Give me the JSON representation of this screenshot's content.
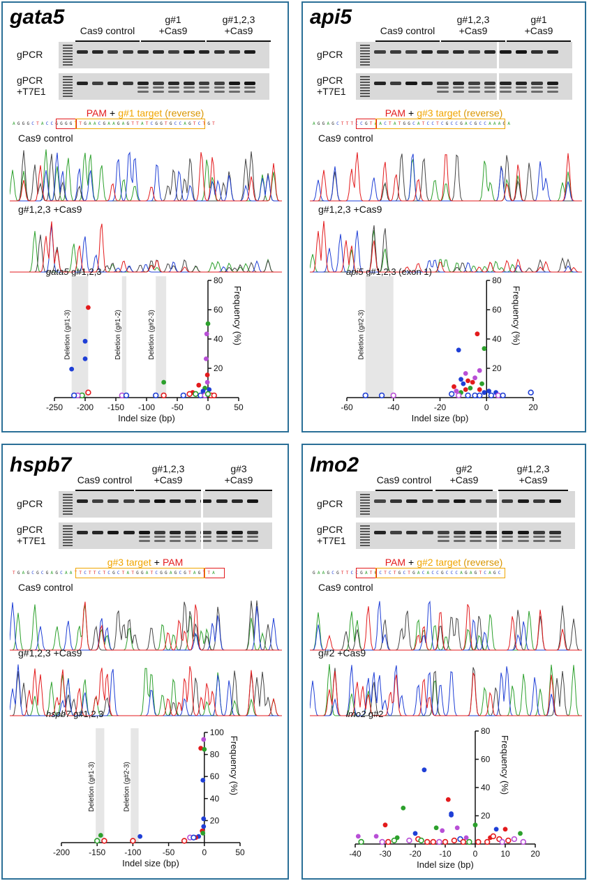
{
  "colors": {
    "border": "#2a6f97",
    "pam": "#e31a1c",
    "target": "#f0a500",
    "red": "#e31a1c",
    "blue": "#1f3fd6",
    "green": "#2ca02c",
    "magenta": "#b84fd6",
    "shade": "#e6e6e6"
  },
  "common": {
    "gpcr": "gPCR",
    "gpcr_t7": "gPCR",
    "t7e1": "+T7E1",
    "cas9_control_group": "Cas9 control",
    "trace_control": "Cas9 control",
    "plus": "+",
    "pam": "PAM",
    "reverse": "(reverse)",
    "x_label": "Indel size (bp)",
    "y_label": "Frequency (%)"
  },
  "panels": [
    {
      "gene": "gata5",
      "groups": [
        {
          "l1": "",
          "l2": "Cas9 control"
        },
        {
          "l1": "g#1",
          "l2": "+Cas9"
        },
        {
          "l1": "g#1,2,3",
          "l2": "+Cas9"
        }
      ],
      "target_label": "g#1 target",
      "sequence": "AGGGCTACCGGGGTTGAACGAAGAGTTATCGGTGCCAGTCTGT",
      "trace2_label": "g#1,2,3 +Cas9",
      "plot_gene": "gata5",
      "plot_suffix": " g#1,2,3",
      "shades": [
        {
          "x1": -222,
          "x2": -195,
          "label": "Deletion (g#1-3)"
        },
        {
          "x1": -140,
          "x2": -133,
          "label": "Deletion (g#1-2)"
        },
        {
          "x1": -85,
          "x2": -68,
          "label": "Deletion (g#2-3)"
        }
      ]
    },
    {
      "gene": "api5",
      "groups": [
        {
          "l1": "",
          "l2": "Cas9 control"
        },
        {
          "l1": "g#1,2,3",
          "l2": "+Cas9"
        },
        {
          "l1": "g#1",
          "l2": "+Cas9"
        }
      ],
      "target_label": "g#3 target",
      "sequence": "AGGAGCTTTCCGTAACTATGGCATCCTCGCCGACGCCAAAGA",
      "trace2_label": "g#1,2,3 +Cas9",
      "plot_gene": "api5",
      "plot_suffix": " g#1,2,3 (exon 1)",
      "shades": [
        {
          "x1": -52,
          "x2": -40,
          "label": "Deletion (g#2-3)"
        }
      ]
    },
    {
      "gene": "hspb7",
      "groups": [
        {
          "l1": "",
          "l2": "Cas9 control"
        },
        {
          "l1": "g#1,2,3",
          "l2": "+Cas9"
        },
        {
          "l1": "g#3",
          "l2": "+Cas9"
        }
      ],
      "target_label": "g#3 target",
      "sequence": "TGAGCGCGAGCAATTCTTCTCGCTATGGATCGGAGCGTAGTTA",
      "trace2_label": "g#1,2,3 +Cas9",
      "plot_gene": "hspb7",
      "plot_suffix": " g#1,2,3",
      "shades": [
        {
          "x1": -152,
          "x2": -140,
          "label": "Deletion (g#1-3)"
        },
        {
          "x1": -103,
          "x2": -92,
          "label": "Deletion (g#2-3)"
        }
      ]
    },
    {
      "gene": "lmo2",
      "groups": [
        {
          "l1": "",
          "l2": "Cas9 control"
        },
        {
          "l1": "g#2",
          "l2": "+Cas9"
        },
        {
          "l1": "g#1,2,3",
          "l2": "+Cas9"
        }
      ],
      "target_label": "g#2 target",
      "sequence": "GAAGCGTTCCGATGCTCTGCTGACACCGCCCAGAGTCAGC",
      "trace2_label": "g#2 +Cas9",
      "plot_gene": "lmo2",
      "plot_suffix": " g#2",
      "shades": []
    }
  ],
  "chart_data": [
    {
      "type": "scatter",
      "title": "gata5 g#1,2,3",
      "xlabel": "Indel size (bp)",
      "ylabel": "Frequency (%)",
      "xlim": [
        -250,
        50
      ],
      "ylim": [
        0,
        80
      ],
      "xticks": [
        -250,
        -200,
        -150,
        -100,
        -50,
        0,
        50
      ],
      "yticks": [
        20,
        40,
        60,
        80
      ],
      "points": [
        {
          "x": -195,
          "y": 61,
          "c": "red",
          "f": 1
        },
        {
          "x": -200,
          "y": 38,
          "c": "blue",
          "f": 1
        },
        {
          "x": -200,
          "y": 26,
          "c": "blue",
          "f": 1
        },
        {
          "x": -222,
          "y": 19,
          "c": "blue",
          "f": 1
        },
        {
          "x": -195,
          "y": 3,
          "c": "red",
          "f": 0
        },
        {
          "x": -205,
          "y": 1,
          "c": "green",
          "f": 0
        },
        {
          "x": -212,
          "y": 1,
          "c": "magenta",
          "f": 0
        },
        {
          "x": -218,
          "y": 1,
          "c": "blue",
          "f": 0
        },
        {
          "x": -140,
          "y": 1,
          "c": "magenta",
          "f": 0
        },
        {
          "x": -133,
          "y": 1,
          "c": "blue",
          "f": 0
        },
        {
          "x": -72,
          "y": 10,
          "c": "green",
          "f": 1
        },
        {
          "x": -85,
          "y": 1,
          "c": "blue",
          "f": 0
        },
        {
          "x": -72,
          "y": 1,
          "c": "red",
          "f": 0
        },
        {
          "x": 0,
          "y": 50,
          "c": "green",
          "f": 1
        },
        {
          "x": -2,
          "y": 43,
          "c": "magenta",
          "f": 1
        },
        {
          "x": -3,
          "y": 26,
          "c": "magenta",
          "f": 1
        },
        {
          "x": -1,
          "y": 15,
          "c": "red",
          "f": 1
        },
        {
          "x": -1,
          "y": 10,
          "c": "magenta",
          "f": 1
        },
        {
          "x": -15,
          "y": 8,
          "c": "red",
          "f": 1
        },
        {
          "x": -5,
          "y": 6,
          "c": "green",
          "f": 1
        },
        {
          "x": 2,
          "y": 5,
          "c": "blue",
          "f": 1
        },
        {
          "x": -8,
          "y": 4,
          "c": "blue",
          "f": 1
        },
        {
          "x": -25,
          "y": 3,
          "c": "red",
          "f": 1
        },
        {
          "x": -30,
          "y": 2,
          "c": "red",
          "f": 0
        },
        {
          "x": -20,
          "y": 2,
          "c": "green",
          "f": 0
        },
        {
          "x": -12,
          "y": 1,
          "c": "blue",
          "f": 0
        },
        {
          "x": -5,
          "y": 1,
          "c": "magenta",
          "f": 0
        },
        {
          "x": 5,
          "y": 1,
          "c": "red",
          "f": 0
        },
        {
          "x": 10,
          "y": 1,
          "c": "red",
          "f": 0
        },
        {
          "x": -40,
          "y": 1,
          "c": "blue",
          "f": 0
        },
        {
          "x": 0,
          "y": 2,
          "c": "green",
          "f": 0
        }
      ]
    },
    {
      "type": "scatter",
      "title": "api5 g#1,2,3 (exon 1)",
      "xlabel": "Indel size (bp)",
      "ylabel": "Frequency (%)",
      "xlim": [
        -60,
        20
      ],
      "ylim": [
        0,
        80
      ],
      "xticks": [
        -60,
        -40,
        -20,
        0,
        20
      ],
      "yticks": [
        20,
        40,
        60,
        80
      ],
      "points": [
        {
          "x": -4,
          "y": 43,
          "c": "red",
          "f": 1
        },
        {
          "x": -1,
          "y": 33,
          "c": "green",
          "f": 1
        },
        {
          "x": -12,
          "y": 32,
          "c": "blue",
          "f": 1
        },
        {
          "x": -3,
          "y": 18,
          "c": "magenta",
          "f": 1
        },
        {
          "x": -9,
          "y": 16,
          "c": "magenta",
          "f": 1
        },
        {
          "x": -5,
          "y": 13,
          "c": "magenta",
          "f": 1
        },
        {
          "x": -11,
          "y": 12,
          "c": "blue",
          "f": 1
        },
        {
          "x": -8,
          "y": 11,
          "c": "red",
          "f": 1
        },
        {
          "x": -6,
          "y": 10,
          "c": "red",
          "f": 1
        },
        {
          "x": -10,
          "y": 9,
          "c": "blue",
          "f": 1
        },
        {
          "x": -2,
          "y": 9,
          "c": "green",
          "f": 1
        },
        {
          "x": -14,
          "y": 7,
          "c": "red",
          "f": 1
        },
        {
          "x": -7,
          "y": 6,
          "c": "green",
          "f": 1
        },
        {
          "x": -3,
          "y": 5,
          "c": "red",
          "f": 1
        },
        {
          "x": -13,
          "y": 4,
          "c": "magenta",
          "f": 1
        },
        {
          "x": -9,
          "y": 5,
          "c": "red",
          "f": 1
        },
        {
          "x": 1,
          "y": 4,
          "c": "blue",
          "f": 1
        },
        {
          "x": 4,
          "y": 3,
          "c": "blue",
          "f": 1
        },
        {
          "x": -1,
          "y": 3,
          "c": "blue",
          "f": 1
        },
        {
          "x": -11,
          "y": 3,
          "c": "green",
          "f": 1
        },
        {
          "x": -15,
          "y": 2,
          "c": "blue",
          "f": 0
        },
        {
          "x": -12,
          "y": 1,
          "c": "magenta",
          "f": 0
        },
        {
          "x": -8,
          "y": 1,
          "c": "blue",
          "f": 0
        },
        {
          "x": -5,
          "y": 1,
          "c": "blue",
          "f": 0
        },
        {
          "x": -3,
          "y": 1,
          "c": "blue",
          "f": 0
        },
        {
          "x": 2,
          "y": 1,
          "c": "blue",
          "f": 0
        },
        {
          "x": 5,
          "y": 1,
          "c": "magenta",
          "f": 0
        },
        {
          "x": 7,
          "y": 1,
          "c": "blue",
          "f": 0
        },
        {
          "x": 19,
          "y": 3,
          "c": "blue",
          "f": 0
        },
        {
          "x": -52,
          "y": 1,
          "c": "blue",
          "f": 0
        },
        {
          "x": -45,
          "y": 1,
          "c": "blue",
          "f": 0
        },
        {
          "x": -40,
          "y": 1,
          "c": "magenta",
          "f": 0
        }
      ]
    },
    {
      "type": "scatter",
      "title": "hspb7 g#1,2,3",
      "xlabel": "Indel size (bp)",
      "ylabel": "Frequency (%)",
      "xlim": [
        -200,
        50
      ],
      "ylim": [
        0,
        100
      ],
      "xticks": [
        -200,
        -150,
        -100,
        -50,
        0,
        50
      ],
      "yticks": [
        20,
        40,
        60,
        80,
        100
      ],
      "points": [
        {
          "x": -1,
          "y": 93,
          "c": "magenta",
          "f": 1
        },
        {
          "x": -5,
          "y": 85,
          "c": "red",
          "f": 1
        },
        {
          "x": 0,
          "y": 84,
          "c": "green",
          "f": 1
        },
        {
          "x": -2,
          "y": 56,
          "c": "blue",
          "f": 1
        },
        {
          "x": -1,
          "y": 21,
          "c": "blue",
          "f": 1
        },
        {
          "x": -1,
          "y": 14,
          "c": "blue",
          "f": 1
        },
        {
          "x": -3,
          "y": 10,
          "c": "red",
          "f": 1
        },
        {
          "x": -2,
          "y": 8,
          "c": "green",
          "f": 1
        },
        {
          "x": -8,
          "y": 5,
          "c": "blue",
          "f": 1
        },
        {
          "x": -12,
          "y": 4,
          "c": "red",
          "f": 1
        },
        {
          "x": -145,
          "y": 6,
          "c": "green",
          "f": 1
        },
        {
          "x": -90,
          "y": 5,
          "c": "blue",
          "f": 1
        },
        {
          "x": -150,
          "y": 1,
          "c": "green",
          "f": 0
        },
        {
          "x": -140,
          "y": 1,
          "c": "red",
          "f": 0
        },
        {
          "x": -100,
          "y": 1,
          "c": "red",
          "f": 0
        },
        {
          "x": -28,
          "y": 1,
          "c": "red",
          "f": 0
        },
        {
          "x": -20,
          "y": 4,
          "c": "magenta",
          "f": 0
        },
        {
          "x": -15,
          "y": 4,
          "c": "blue",
          "f": 0
        }
      ]
    },
    {
      "type": "scatter",
      "title": "lmo2 g#2",
      "xlabel": "Indel size (bp)",
      "ylabel": "Frequency (%)",
      "xlim": [
        -40,
        20
      ],
      "ylim": [
        0,
        80
      ],
      "xticks": [
        -40,
        -30,
        -20,
        -10,
        0,
        10,
        20
      ],
      "yticks": [
        20,
        40,
        60,
        80
      ],
      "points": [
        {
          "x": -17,
          "y": 52,
          "c": "blue",
          "f": 1
        },
        {
          "x": -9,
          "y": 31,
          "c": "red",
          "f": 1
        },
        {
          "x": -24,
          "y": 25,
          "c": "green",
          "f": 1
        },
        {
          "x": -8,
          "y": 21,
          "c": "blue",
          "f": 1
        },
        {
          "x": -8,
          "y": 20,
          "c": "blue",
          "f": 1
        },
        {
          "x": -30,
          "y": 13,
          "c": "red",
          "f": 1
        },
        {
          "x": 0,
          "y": 13,
          "c": "green",
          "f": 1
        },
        {
          "x": -13,
          "y": 11,
          "c": "green",
          "f": 1
        },
        {
          "x": -6,
          "y": 11,
          "c": "magenta",
          "f": 1
        },
        {
          "x": -11,
          "y": 9,
          "c": "magenta",
          "f": 1
        },
        {
          "x": 7,
          "y": 10,
          "c": "blue",
          "f": 1
        },
        {
          "x": 10,
          "y": 10,
          "c": "red",
          "f": 1
        },
        {
          "x": -20,
          "y": 7,
          "c": "blue",
          "f": 1
        },
        {
          "x": 15,
          "y": 7,
          "c": "green",
          "f": 1
        },
        {
          "x": -39,
          "y": 5,
          "c": "magenta",
          "f": 1
        },
        {
          "x": -33,
          "y": 5,
          "c": "magenta",
          "f": 1
        },
        {
          "x": -26,
          "y": 4,
          "c": "green",
          "f": 1
        },
        {
          "x": -3,
          "y": 4,
          "c": "magenta",
          "f": 1
        },
        {
          "x": 5,
          "y": 4,
          "c": "red",
          "f": 1
        },
        {
          "x": -38,
          "y": 1,
          "c": "green",
          "f": 0
        },
        {
          "x": -31,
          "y": 1,
          "c": "magenta",
          "f": 0
        },
        {
          "x": -29,
          "y": 1,
          "c": "red",
          "f": 0
        },
        {
          "x": -27,
          "y": 2,
          "c": "green",
          "f": 0
        },
        {
          "x": -22,
          "y": 2,
          "c": "magenta",
          "f": 0
        },
        {
          "x": -19,
          "y": 3,
          "c": "red",
          "f": 0
        },
        {
          "x": -18,
          "y": 2,
          "c": "green",
          "f": 0
        },
        {
          "x": -16,
          "y": 1,
          "c": "red",
          "f": 0
        },
        {
          "x": -14,
          "y": 1,
          "c": "red",
          "f": 0
        },
        {
          "x": -12,
          "y": 1,
          "c": "magenta",
          "f": 0
        },
        {
          "x": -7,
          "y": 2,
          "c": "red",
          "f": 0
        },
        {
          "x": -5,
          "y": 3,
          "c": "blue",
          "f": 0
        },
        {
          "x": -4,
          "y": 1,
          "c": "red",
          "f": 0
        },
        {
          "x": -2,
          "y": 1,
          "c": "green",
          "f": 0
        },
        {
          "x": 1,
          "y": 1,
          "c": "red",
          "f": 0
        },
        {
          "x": 4,
          "y": 1,
          "c": "red",
          "f": 0
        },
        {
          "x": 6,
          "y": 5,
          "c": "red",
          "f": 0
        },
        {
          "x": 8,
          "y": 3,
          "c": "red",
          "f": 0
        },
        {
          "x": 9,
          "y": 1,
          "c": "magenta",
          "f": 0
        },
        {
          "x": 11,
          "y": 2,
          "c": "red",
          "f": 0
        },
        {
          "x": 13,
          "y": 3,
          "c": "magenta",
          "f": 0
        },
        {
          "x": 16,
          "y": 1,
          "c": "magenta",
          "f": 0
        },
        {
          "x": -10,
          "y": 1,
          "c": "red",
          "f": 0
        }
      ]
    }
  ]
}
